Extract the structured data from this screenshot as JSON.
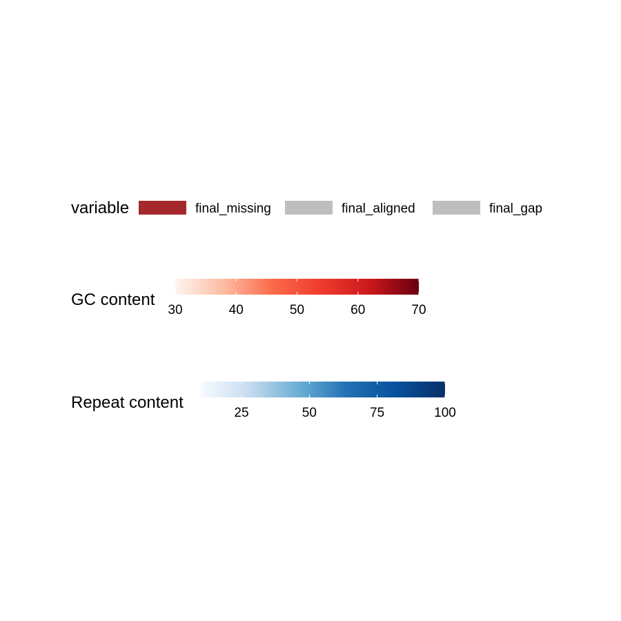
{
  "chart_data": {
    "type": "legend",
    "legends": [
      {
        "kind": "discrete",
        "title": "variable",
        "items": [
          {
            "label": "final_missing",
            "color": "#a5282c"
          },
          {
            "label": "final_aligned",
            "color": "#bebebe"
          },
          {
            "label": "final_gap",
            "color": "#bebebe"
          }
        ]
      },
      {
        "kind": "gradient",
        "title": "GC content",
        "range": [
          30,
          70
        ],
        "ticks": [
          30,
          40,
          50,
          60,
          70
        ],
        "tick_labels": [
          "30",
          "40",
          "50",
          "60",
          "70"
        ],
        "colors": [
          "#fff5f0",
          "#fcbba1",
          "#fb6a4a",
          "#ef3b2c",
          "#cb181d",
          "#67000d"
        ]
      },
      {
        "kind": "gradient",
        "title": "Repeat content",
        "range": [
          10,
          100
        ],
        "ticks": [
          25,
          50,
          75,
          100
        ],
        "tick_labels": [
          "25",
          "50",
          "75",
          "100"
        ],
        "colors": [
          "#f7fbff",
          "#c6dbef",
          "#6baed6",
          "#2171b5",
          "#08519c",
          "#08306b"
        ]
      }
    ]
  }
}
